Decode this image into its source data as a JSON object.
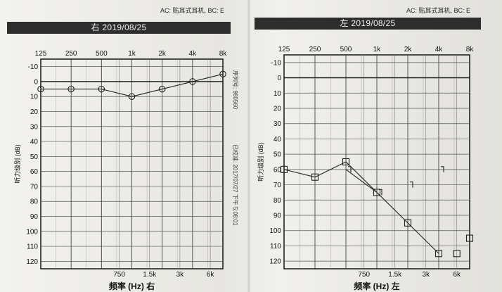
{
  "header": {
    "right_ac": "AC: 贴耳式耳机, BC: E",
    "left_ac": "AC: 贴耳式耳机, BC: E"
  },
  "charts": [
    {
      "title": "右 2019/08/25",
      "xlabel": "频率 (Hz) 右",
      "ylabel": "听力级别 (dB)"
    },
    {
      "title": "左 2019/08/25",
      "xlabel": "频率 (Hz) 左",
      "ylabel": "听力级别 (dB)"
    }
  ],
  "side_text": {
    "serial": "序列号: 980560",
    "approved": "已校准: 2017/07/27 下午 5:08:01"
  },
  "chart_data": [
    {
      "type": "line",
      "title": "右 2019/08/25",
      "xlabel": "频率 (Hz) 右",
      "ylabel": "听力级别 (dB)",
      "x_top_ticks": [
        "125",
        "250",
        "500",
        "1k",
        "2k",
        "4k",
        "8k"
      ],
      "x_bottom_ticks": [
        "750",
        "1.5k",
        "3k",
        "6k"
      ],
      "y_ticks": [
        -10,
        0,
        10,
        20,
        30,
        40,
        50,
        60,
        70,
        80,
        90,
        100,
        110,
        120
      ],
      "ylim": [
        -15,
        125
      ],
      "y_inverted": true,
      "x_scale": "log2",
      "grid": true,
      "series": [
        {
          "marker": "circle",
          "x": [
            125,
            250,
            500,
            1000,
            2000,
            4000,
            8000
          ],
          "y": [
            5,
            5,
            5,
            10,
            5,
            0,
            -5
          ]
        }
      ]
    },
    {
      "type": "line",
      "title": "左 2019/08/25",
      "xlabel": "频率 (Hz) 左",
      "ylabel": "听力级别 (dB)",
      "x_top_ticks": [
        "125",
        "250",
        "500",
        "1k",
        "2k",
        "4k",
        "8k"
      ],
      "x_bottom_ticks": [
        "750",
        "1.5k",
        "3k",
        "6k"
      ],
      "y_ticks": [
        -10,
        0,
        10,
        20,
        30,
        40,
        50,
        60,
        70,
        80,
        90,
        100,
        110,
        120
      ],
      "ylim": [
        -15,
        125
      ],
      "y_inverted": true,
      "x_scale": "log2",
      "grid": true,
      "series": [
        {
          "marker": "square",
          "x": [
            125,
            250,
            500,
            1000,
            2000,
            4000,
            8000
          ],
          "y": [
            60,
            65,
            55,
            75,
            95,
            115,
            105
          ],
          "segments": [
            [
              0,
              1
            ],
            [
              1,
              2
            ],
            [
              2,
              3
            ],
            [
              3,
              4
            ],
            [
              4,
              5
            ]
          ],
          "extra_marker_x": [
            6000
          ],
          "extra_marker_y": [
            115
          ]
        },
        {
          "marker": "bracket",
          "x": [
            500,
            1000,
            2000,
            4000
          ],
          "y": [
            60,
            75,
            70,
            60
          ],
          "segments": [
            [
              0,
              1
            ]
          ]
        }
      ]
    }
  ]
}
